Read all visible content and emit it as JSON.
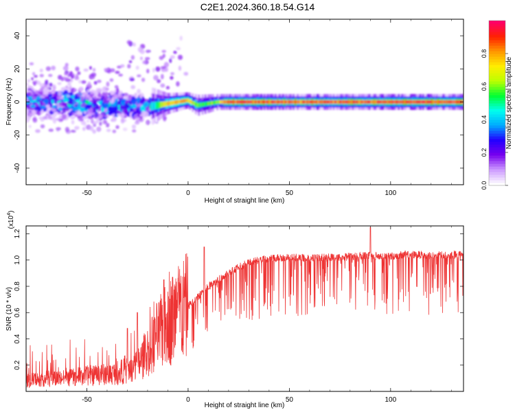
{
  "title": "C2E1.2024.360.18.54.G14",
  "chart_data": [
    {
      "type": "heatmap",
      "xlabel": "Height of straight line (km)",
      "ylabel": "Frequency (Hz)",
      "xlim": [
        -80,
        136
      ],
      "ylim": [
        -50,
        50
      ],
      "xticks": [
        -50,
        0,
        50,
        100
      ],
      "yticks": [
        -40,
        -20,
        0,
        20,
        40
      ],
      "colorbar": {
        "label": "Normalized spectral amplitude",
        "range": [
          0,
          1
        ],
        "ticks": [
          0.0,
          0.2,
          0.4,
          0.6,
          0.8
        ],
        "colors": [
          "#ffffff",
          "#cc99ff",
          "#7700ee",
          "#2200ff",
          "#00aaff",
          "#00ffee",
          "#00ff33",
          "#bbff00",
          "#ffee00",
          "#ff9900",
          "#ff2200",
          "#ff0066"
        ]
      },
      "ridge": [
        {
          "x": -80,
          "freq": 0,
          "spread": 8,
          "amp": 0.3
        },
        {
          "x": -60,
          "freq": 0,
          "spread": 7,
          "amp": 0.35
        },
        {
          "x": -40,
          "freq": -2,
          "spread": 6,
          "amp": 0.35
        },
        {
          "x": -20,
          "freq": -3,
          "spread": 4,
          "amp": 0.3
        },
        {
          "x": -10,
          "freq": -1,
          "spread": 2,
          "amp": 0.75
        },
        {
          "x": 0,
          "freq": 1,
          "spread": 1.5,
          "amp": 0.8
        },
        {
          "x": 5,
          "freq": -2,
          "spread": 2,
          "amp": 0.55
        },
        {
          "x": 15,
          "freq": 0,
          "spread": 1.5,
          "amp": 0.6
        },
        {
          "x": 20,
          "freq": 0,
          "spread": 1.5,
          "amp": 0.9
        },
        {
          "x": 50,
          "freq": 0,
          "spread": 1.5,
          "amp": 0.85
        },
        {
          "x": 87,
          "freq": 0,
          "spread": 1.5,
          "amp": 0.85
        },
        {
          "x": 100,
          "freq": 0,
          "spread": 1.5,
          "amp": 0.9
        },
        {
          "x": 136,
          "freq": 0,
          "spread": 1.5,
          "amp": 0.9
        }
      ]
    },
    {
      "type": "line",
      "xlabel": "Height of straight line (km)",
      "ylabel": "SNR (10 * v/v)",
      "y_scale_label": "(x10",
      "y_scale_exp": "4",
      "y_scale_close": ")",
      "xlim": [
        -80,
        136
      ],
      "ylim": [
        0,
        1.26
      ],
      "xticks": [
        -50,
        0,
        50,
        100
      ],
      "yticks": [
        0.2,
        0.4,
        0.6,
        0.8,
        1.0,
        1.2
      ],
      "color": "#ee3333",
      "series": [
        {
          "x": [
            -80,
            -70,
            -60,
            -50,
            -40,
            -35,
            -30,
            -25,
            -20,
            -15,
            -10,
            -5,
            0,
            5,
            8,
            10,
            15,
            20,
            25,
            30,
            35,
            40,
            45,
            50,
            55,
            60,
            65,
            70,
            75,
            80,
            85,
            90,
            95,
            100,
            105,
            110,
            115,
            120,
            125,
            130,
            136
          ],
          "y": [
            0.08,
            0.1,
            0.1,
            0.12,
            0.13,
            0.14,
            0.16,
            0.2,
            0.3,
            0.42,
            0.52,
            0.6,
            0.65,
            0.72,
            0.78,
            0.8,
            0.85,
            0.9,
            0.95,
            0.98,
            1.0,
            1.01,
            1.02,
            1.02,
            1.02,
            1.01,
            1.02,
            1.02,
            1.02,
            1.03,
            1.03,
            1.04,
            1.03,
            1.03,
            1.04,
            1.04,
            1.04,
            1.03,
            1.04,
            1.04,
            1.04
          ]
        }
      ],
      "spikes": [
        {
          "x": -30,
          "y": 0.48
        },
        {
          "x": -25,
          "y": 0.6
        },
        {
          "x": -12,
          "y": 0.85
        },
        {
          "x": 8,
          "y": 1.1
        },
        {
          "x": 90,
          "y": 1.25
        }
      ]
    }
  ]
}
